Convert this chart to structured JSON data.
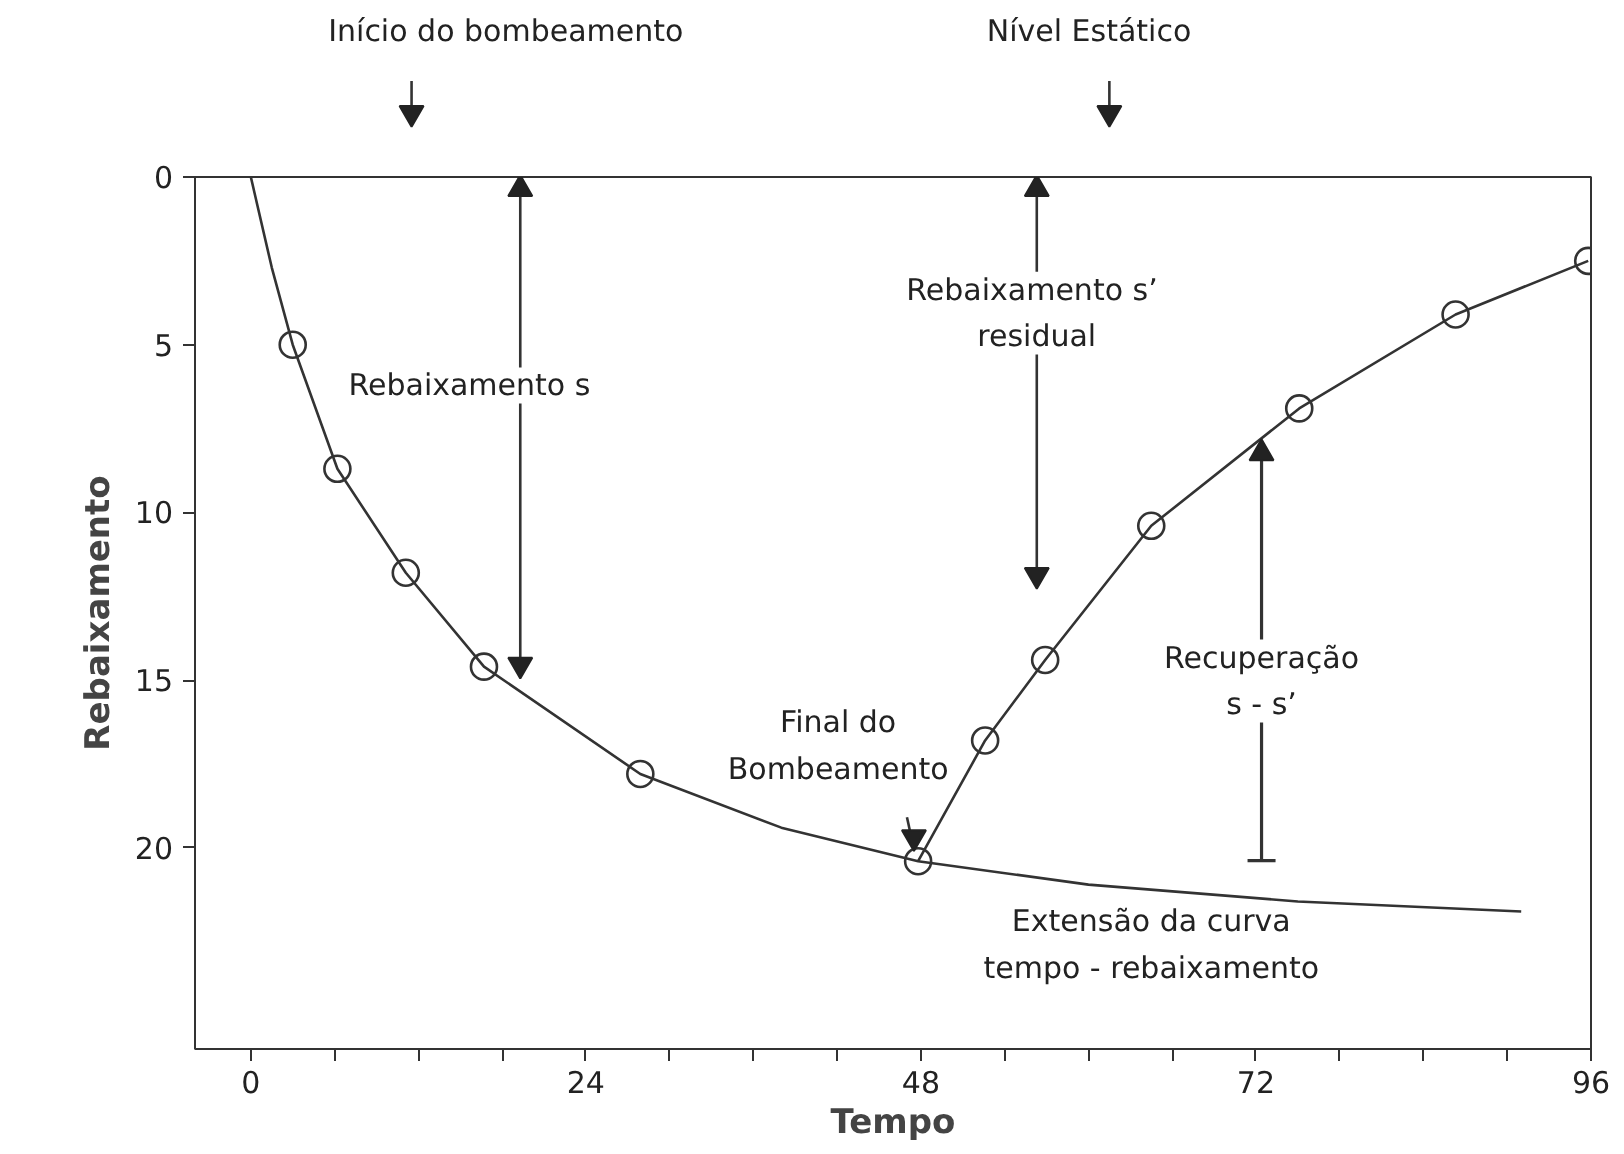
{
  "chart_data": {
    "type": "line",
    "xlabel": "Tempo",
    "ylabel": "Rebaixamento",
    "xlim": [
      -4,
      96
    ],
    "ylim": [
      26,
      0
    ],
    "xticks": [
      0,
      {
        "value": 6,
        "label": null
      },
      {
        "value": 12,
        "label": null
      },
      {
        "value": 18,
        "label": null
      },
      24,
      {
        "value": 30,
        "label": null
      },
      {
        "value": 36,
        "label": null
      },
      {
        "value": 42,
        "label": null
      },
      48,
      {
        "value": 54,
        "label": null
      },
      {
        "value": 60,
        "label": null
      },
      {
        "value": 66,
        "label": null
      },
      72,
      {
        "value": 78,
        "label": null
      },
      {
        "value": 84,
        "label": null
      },
      {
        "value": 90,
        "label": null
      },
      96
    ],
    "yticks": [
      0,
      5,
      10,
      15,
      20
    ],
    "grid": false,
    "series": [
      {
        "marker": "none",
        "line_style": "solid",
        "color": "#333333",
        "x": [
          0,
          1.5,
          3,
          6.2,
          11.1,
          16.7,
          27.9,
          38,
          47.8,
          60,
          75,
          91
        ],
        "values": [
          0,
          2.7,
          5,
          8.7,
          11.8,
          14.6,
          17.8,
          19.4,
          20.4,
          21.1,
          21.6,
          21.9
        ]
      },
      {
        "type": "scatter",
        "marker": "circle",
        "color": "#333333",
        "x": [
          3,
          6.2,
          11.1,
          16.7,
          27.9
        ],
        "values": [
          5,
          8.7,
          11.8,
          14.6,
          17.8
        ]
      },
      {
        "marker": "circle",
        "line_style": "solid",
        "color": "#333333",
        "x": [
          47.8,
          52.6,
          56.9,
          64.5,
          75.1,
          86.3,
          95.8
        ],
        "values": [
          20.4,
          16.8,
          14.4,
          10.4,
          6.9,
          4.1,
          2.5
        ]
      }
    ],
    "annotations": [
      "Início do bombeamento",
      "Nível Estático",
      "Rebaixamento  s",
      "Rebaixamento  s’\nresidual",
      "Recuperação\ns - s’",
      {
        "text": "Final do\nBombeamento",
        "x": 47.8,
        "y": 20.4
      },
      {
        "text": "Extensão da curva\ntempo - rebaixamento",
        "x": 64.5,
        "y": 21.4
      }
    ]
  }
}
